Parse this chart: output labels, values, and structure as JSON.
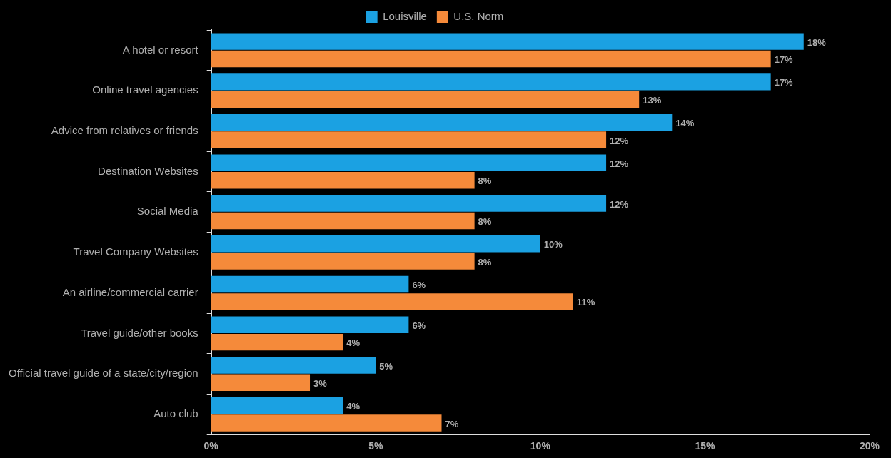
{
  "chart_data": {
    "type": "bar",
    "orientation": "horizontal",
    "categories": [
      "A hotel or resort",
      "Online travel agencies",
      "Advice from relatives or friends",
      "Destination Websites",
      "Social Media",
      "Travel Company Websites",
      "An airline/commercial carrier",
      "Travel guide/other books",
      "Official travel guide of a state/city/region",
      "Auto club"
    ],
    "series": [
      {
        "name": "Louisville",
        "color": "#1ba1e2",
        "values": [
          18,
          17,
          14,
          12,
          12,
          10,
          6,
          6,
          5,
          4
        ],
        "value_labels": [
          "18%",
          "17%",
          "14%",
          "12%",
          "12%",
          "10%",
          "6%",
          "6%",
          "5%",
          "4%"
        ]
      },
      {
        "name": "U.S. Norm",
        "color": "#f58a3a",
        "values": [
          17,
          13,
          12,
          8,
          8,
          8,
          11,
          4,
          3,
          7
        ],
        "value_labels": [
          "17%",
          "13%",
          "12%",
          "8%",
          "8%",
          "8%",
          "11%",
          "4%",
          "3%",
          "7%"
        ]
      }
    ],
    "xlim": [
      0,
      20
    ],
    "xticks": [
      {
        "value": 0,
        "label": "0%"
      },
      {
        "value": 5,
        "label": "5%"
      },
      {
        "value": 10,
        "label": "10%"
      },
      {
        "value": 15,
        "label": "15%"
      },
      {
        "value": 20,
        "label": "20%"
      }
    ],
    "grid": false,
    "legend": "top"
  }
}
